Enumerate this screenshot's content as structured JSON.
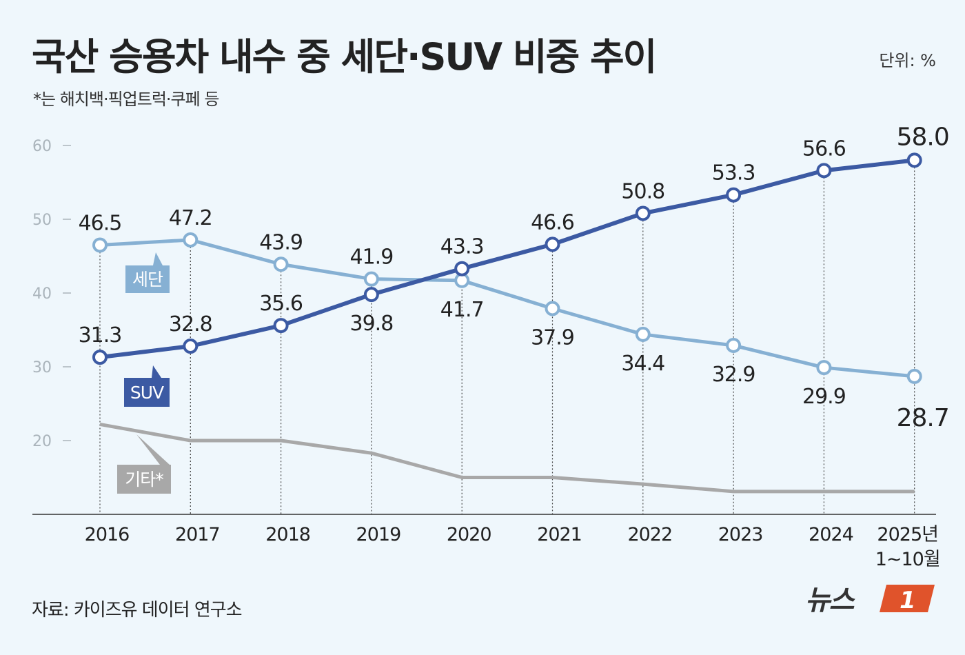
{
  "title": "국산 승용차 내수 중 세단·SUV 비중 추이",
  "subtitle": "*는 해치백·픽업트럭·쿠페 등",
  "unit": "단위: %",
  "source": "자료: 카이즈유 데이터 연구소",
  "logo_text": "뉴스1",
  "colors": {
    "background": "#eff7fc",
    "sedan": "#86b0d3",
    "suv": "#3c5aa3",
    "other": "#a8a8a8",
    "logo": "#e0532b"
  },
  "chart_data": {
    "type": "line",
    "title": "국산 승용차 내수 중 세단·SUV 비중 추이",
    "categories": [
      "2016",
      "2017",
      "2018",
      "2019",
      "2020",
      "2021",
      "2022",
      "2023",
      "2024",
      "2025년\n1~10월"
    ],
    "category_labels": [
      [
        "2016"
      ],
      [
        "2017"
      ],
      [
        "2018"
      ],
      [
        "2019"
      ],
      [
        "2020"
      ],
      [
        "2021"
      ],
      [
        "2022"
      ],
      [
        "2023"
      ],
      [
        "2024"
      ],
      [
        "2025년",
        "1~10월"
      ]
    ],
    "ylim": [
      10,
      60
    ],
    "yticks": [
      "20",
      "30",
      "40",
      "50",
      "60"
    ],
    "grid": false,
    "series": [
      {
        "name": "세단",
        "values": [
          46.5,
          47.2,
          43.9,
          41.9,
          41.7,
          37.9,
          34.4,
          32.9,
          29.9,
          28.7
        ],
        "labels": [
          "46.5",
          "47.2",
          "43.9",
          "41.9",
          "41.7",
          "37.9",
          "34.4",
          "32.9",
          "29.9",
          "28.7"
        ],
        "markers": true
      },
      {
        "name": "SUV",
        "values": [
          31.3,
          32.8,
          35.6,
          39.8,
          43.3,
          46.6,
          50.8,
          53.3,
          56.6,
          58.0
        ],
        "labels": [
          "31.3",
          "32.8",
          "35.6",
          "39.8",
          "43.3",
          "46.6",
          "50.8",
          "53.3",
          "56.6",
          "58.0"
        ],
        "markers": true
      },
      {
        "name": "기타*",
        "values": [
          22.2,
          20.0,
          20.0,
          18.3,
          15.0,
          15.0,
          14.1,
          13.1,
          13.1,
          13.1
        ],
        "markers": false
      }
    ]
  }
}
